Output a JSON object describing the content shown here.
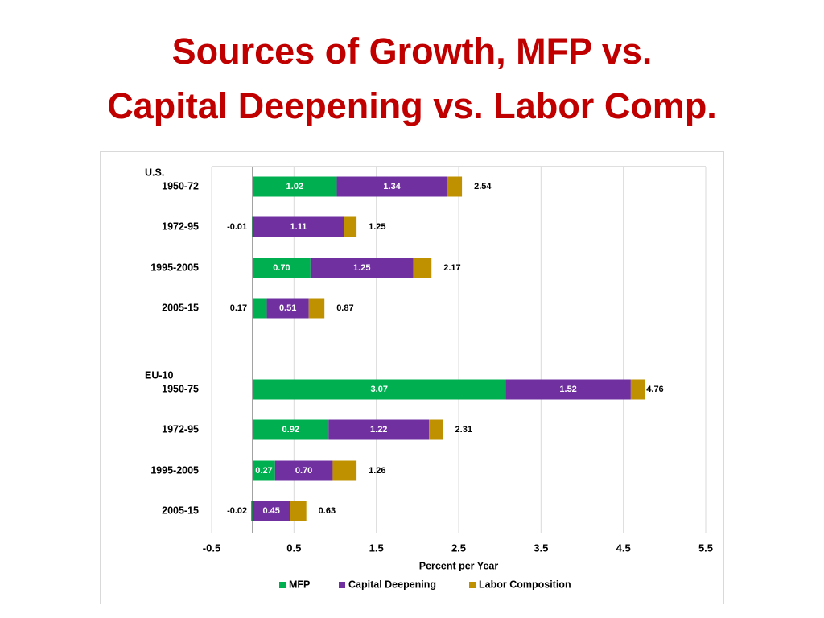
{
  "title": {
    "line1": "Sources of Growth, MFP vs.",
    "line2": "Capital Deepening vs. Labor Comp."
  },
  "chart_data": {
    "type": "bar",
    "orientation": "horizontal",
    "stacked": true,
    "xlabel": "Percent per Year",
    "xlim": [
      -0.5,
      5.5
    ],
    "xticks": [
      -0.5,
      0.5,
      1.5,
      2.5,
      3.5,
      4.5,
      5.5
    ],
    "tick_labels": [
      "-0.5",
      "0.5",
      "1.5",
      "2.5",
      "3.5",
      "4.5",
      "5.5"
    ],
    "grid": true,
    "legend_position": "bottom",
    "groups": [
      {
        "label": "U.S.",
        "rows": [
          {
            "category": "1950-72",
            "mfp": 1.02,
            "capital_deepening": 1.34,
            "labor_composition": 0.18,
            "total": 2.54,
            "labels": {
              "mfp": "1.02",
              "capital_deepening": "1.34",
              "total": "2.54"
            }
          },
          {
            "category": "1972-95",
            "mfp": -0.01,
            "capital_deepening": 1.11,
            "labor_composition": 0.15,
            "total": 1.25,
            "labels": {
              "mfp": "-0.01",
              "capital_deepening": "1.11",
              "total": "1.25"
            }
          },
          {
            "category": "1995-2005",
            "mfp": 0.7,
            "capital_deepening": 1.25,
            "labor_composition": 0.22,
            "total": 2.17,
            "labels": {
              "mfp": "0.70",
              "capital_deepening": "1.25",
              "total": "2.17"
            }
          },
          {
            "category": "2005-15",
            "mfp": 0.17,
            "capital_deepening": 0.51,
            "labor_composition": 0.19,
            "total": 0.87,
            "labels": {
              "mfp": "0.17",
              "capital_deepening": "0.51",
              "total": "0.87"
            }
          }
        ]
      },
      {
        "label": "EU-10",
        "rows": [
          {
            "category": "1950-75",
            "mfp": 3.07,
            "capital_deepening": 1.52,
            "labor_composition": 0.17,
            "total": 4.76,
            "labels": {
              "mfp": "3.07",
              "capital_deepening": "1.52",
              "total": "4.76"
            }
          },
          {
            "category": "1972-95",
            "mfp": 0.92,
            "capital_deepening": 1.22,
            "labor_composition": 0.17,
            "total": 2.31,
            "labels": {
              "mfp": "0.92",
              "capital_deepening": "1.22",
              "total": "2.31"
            }
          },
          {
            "category": "1995-2005",
            "mfp": 0.27,
            "capital_deepening": 0.7,
            "labor_composition": 0.29,
            "total": 1.26,
            "labels": {
              "mfp": "0.27",
              "capital_deepening": "0.70",
              "total": "1.26"
            }
          },
          {
            "category": "2005-15",
            "mfp": -0.02,
            "capital_deepening": 0.45,
            "labor_composition": 0.2,
            "total": 0.63,
            "labels": {
              "mfp": "-0.02",
              "capital_deepening": "0.45",
              "total": "0.63"
            }
          }
        ]
      }
    ],
    "series": [
      {
        "key": "mfp",
        "name": "MFP",
        "color": "#00b050"
      },
      {
        "key": "capital_deepening",
        "name": "Capital Deepening",
        "color": "#7030a0"
      },
      {
        "key": "labor_composition",
        "name": "Labor Composition",
        "color": "#bf9000"
      }
    ]
  }
}
